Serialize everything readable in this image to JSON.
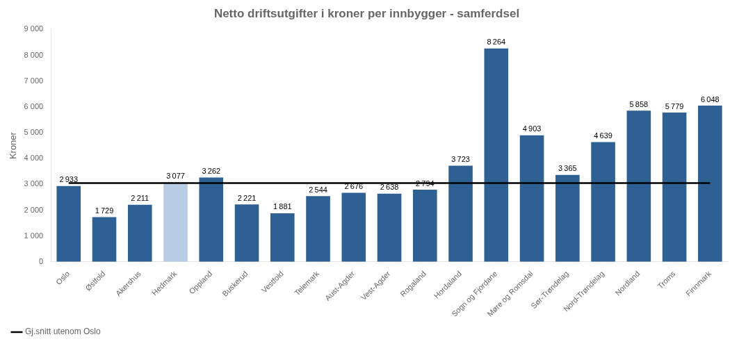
{
  "chart_data": {
    "type": "bar",
    "title": "Netto driftsutgifter i kroner per innbygger - samferdsel",
    "ylabel": "Kroner",
    "categories": [
      "Oslo",
      "Østfold",
      "Akershus",
      "Hedmark",
      "Oppland",
      "Buskerud",
      "Vestfold",
      "Telemark",
      "Aust-Agder",
      "Vest-Agder",
      "Rogaland",
      "Hordaland",
      "Sogn og Fjordane",
      "Møre og Romsdal",
      "Sør-Trøndelag",
      "Nord-Trøndelag",
      "Nordland",
      "Troms",
      "Finnmark"
    ],
    "series": [
      {
        "type": "bar",
        "values": [
          2933,
          1729,
          2211,
          3077,
          3262,
          2221,
          1881,
          2544,
          2676,
          2638,
          2794,
          3723,
          8264,
          4903,
          3365,
          4639,
          5858,
          5779,
          6048
        ],
        "value_labels": [
          "2 933",
          "1 729",
          "2 211",
          "3 077",
          "3 262",
          "2 221",
          "1 881",
          "2 544",
          "2 676",
          "2 638",
          "2 794",
          "3 723",
          "8 264",
          "4 903",
          "3 365",
          "4 639",
          "5 858",
          "5 779",
          "6 048"
        ],
        "colors": [
          "#2e6094",
          "#2e6094",
          "#2e6094",
          "#b8cce4",
          "#2e6094",
          "#2e6094",
          "#2e6094",
          "#2e6094",
          "#2e6094",
          "#2e6094",
          "#2e6094",
          "#2e6094",
          "#2e6094",
          "#2e6094",
          "#2e6094",
          "#2e6094",
          "#2e6094",
          "#2e6094",
          "#2e6094"
        ]
      },
      {
        "type": "line",
        "name": "Gj.snitt utenom Oslo",
        "color": "#000000",
        "values": [
          3050,
          3050,
          3050,
          3050,
          3050,
          3050,
          3050,
          3050,
          3050,
          3050,
          3050,
          3050,
          3050,
          3050,
          3050,
          3050,
          3050,
          3050,
          3050
        ]
      }
    ],
    "ylim": [
      0,
      9000
    ],
    "yticks": [
      0,
      {
        "value": 1000,
        "label": "1 000"
      },
      {
        "value": 2000,
        "label": "2 000"
      },
      {
        "value": 3000,
        "label": "3 000"
      },
      {
        "value": 4000,
        "label": "4 000"
      },
      {
        "value": 5000,
        "label": "5 000"
      },
      {
        "value": 6000,
        "label": "6 000"
      },
      {
        "value": 7000,
        "label": "7 000"
      },
      {
        "value": 8000,
        "label": "8 000"
      },
      {
        "value": 9000,
        "label": "9 000"
      }
    ],
    "grid": false,
    "legend": "bottom",
    "data_labels": true
  }
}
